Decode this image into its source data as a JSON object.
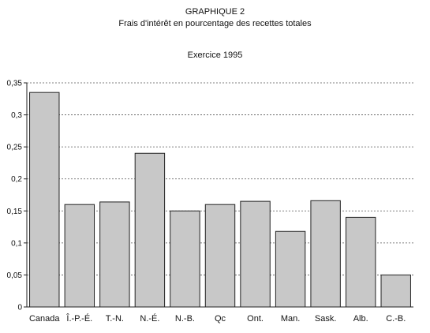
{
  "chart_data": {
    "type": "bar",
    "title": "GRAPHIQUE 2",
    "subtitle": "Frais d'intérêt en pourcentage des recettes totales",
    "subtitle2": "Exercice 1995",
    "xlabel": "",
    "ylabel": "",
    "ylim": [
      0,
      0.35
    ],
    "yticks": [
      0,
      0.05,
      0.1,
      0.15,
      0.2,
      0.25,
      0.3,
      0.35
    ],
    "ytick_labels": [
      "0",
      "0,05",
      "0,1",
      "0,15",
      "0,2",
      "0,25",
      "0,3",
      "0,35"
    ],
    "grid": true,
    "categories": [
      "Canada",
      "Î.-P.-É.",
      "T.-N.",
      "N.-É.",
      "N.-B.",
      "Qc",
      "Ont.",
      "Man.",
      "Sask.",
      "Alb.",
      "C.-B."
    ],
    "values": [
      0.335,
      0.16,
      0.164,
      0.24,
      0.15,
      0.16,
      0.165,
      0.118,
      0.166,
      0.14,
      0.05
    ],
    "bar_color": "#c8c8c8"
  }
}
